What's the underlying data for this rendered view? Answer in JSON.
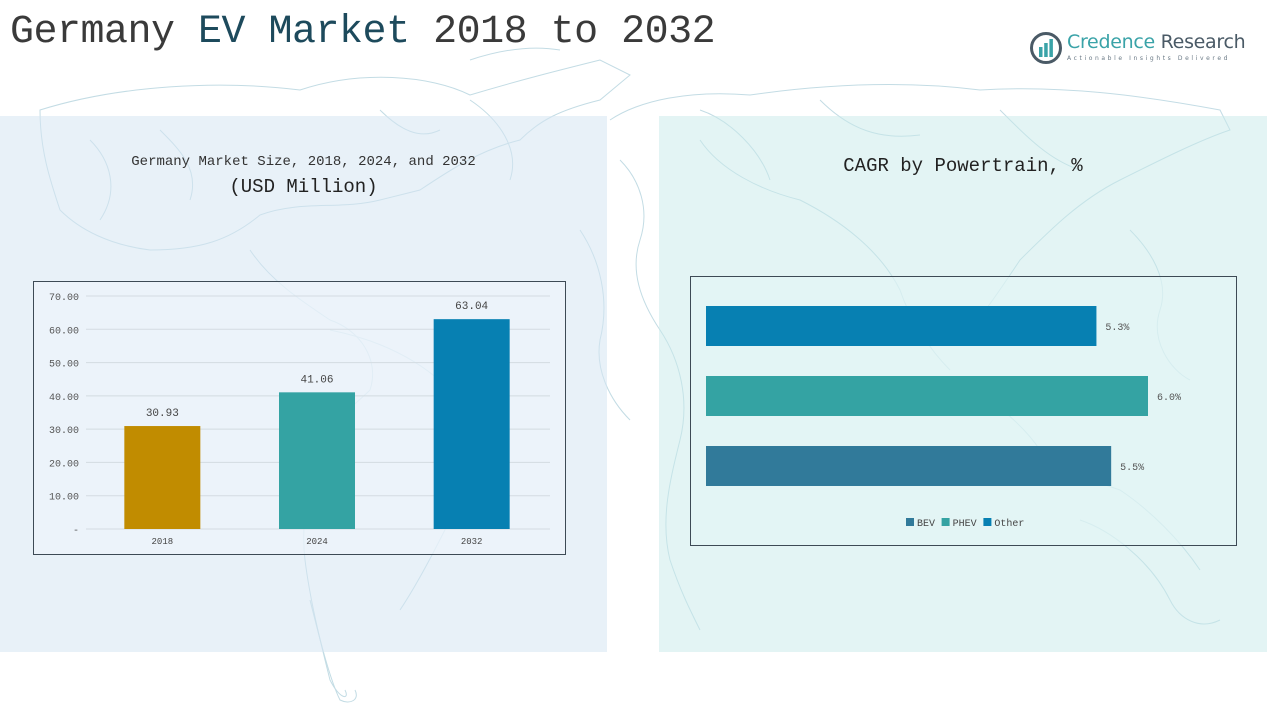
{
  "header": {
    "title_prefix": "Germany ",
    "title_accent": "EV Market",
    "title_suffix": " 2018 to 2032"
  },
  "logo": {
    "name_primary": "Credence",
    "name_secondary": " Research",
    "tagline": "Actionable Insights Delivered"
  },
  "colors": {
    "gold": "#C18C00",
    "teal": "#34A3A3",
    "blue": "#0780B2",
    "steel_blue": "#317A9A"
  },
  "chart_data": [
    {
      "type": "bar",
      "title": "Germany Market Size, 2018, 2024, and 2032",
      "subtitle": "(USD Million)",
      "categories": [
        "2018",
        "2024",
        "2032"
      ],
      "values": [
        30.93,
        41.06,
        63.04
      ],
      "value_labels": [
        "30.93",
        "41.06",
        "63.04"
      ],
      "bar_colors": [
        "#C18C00",
        "#34A3A3",
        "#0780B2"
      ],
      "xlabel": "",
      "ylabel": "",
      "ylim": [
        0,
        70
      ],
      "yticks": [
        0,
        10,
        20,
        30,
        40,
        50,
        60,
        70
      ],
      "ytick_labels": [
        "-",
        "10.00",
        "20.00",
        "30.00",
        "40.00",
        "50.00",
        "60.00",
        "70.00"
      ],
      "grid": true,
      "legend": "none"
    },
    {
      "type": "bar",
      "orientation": "horizontal",
      "title": "CAGR by Powertrain, %",
      "categories": [
        "Other",
        "PHEV",
        "BEV"
      ],
      "values": [
        5.3,
        6.0,
        5.5
      ],
      "value_labels": [
        "5.3%",
        "6.0%",
        "5.5%"
      ],
      "bar_colors": [
        "#0780B2",
        "#34A3A3",
        "#317A9A"
      ],
      "xlim": [
        0,
        6.0
      ],
      "grid": false,
      "legend": "bottom-center",
      "legend_items": [
        {
          "label": "BEV",
          "color": "#317A9A"
        },
        {
          "label": "PHEV",
          "color": "#34A3A3"
        },
        {
          "label": "Other",
          "color": "#0780B2"
        }
      ]
    }
  ]
}
